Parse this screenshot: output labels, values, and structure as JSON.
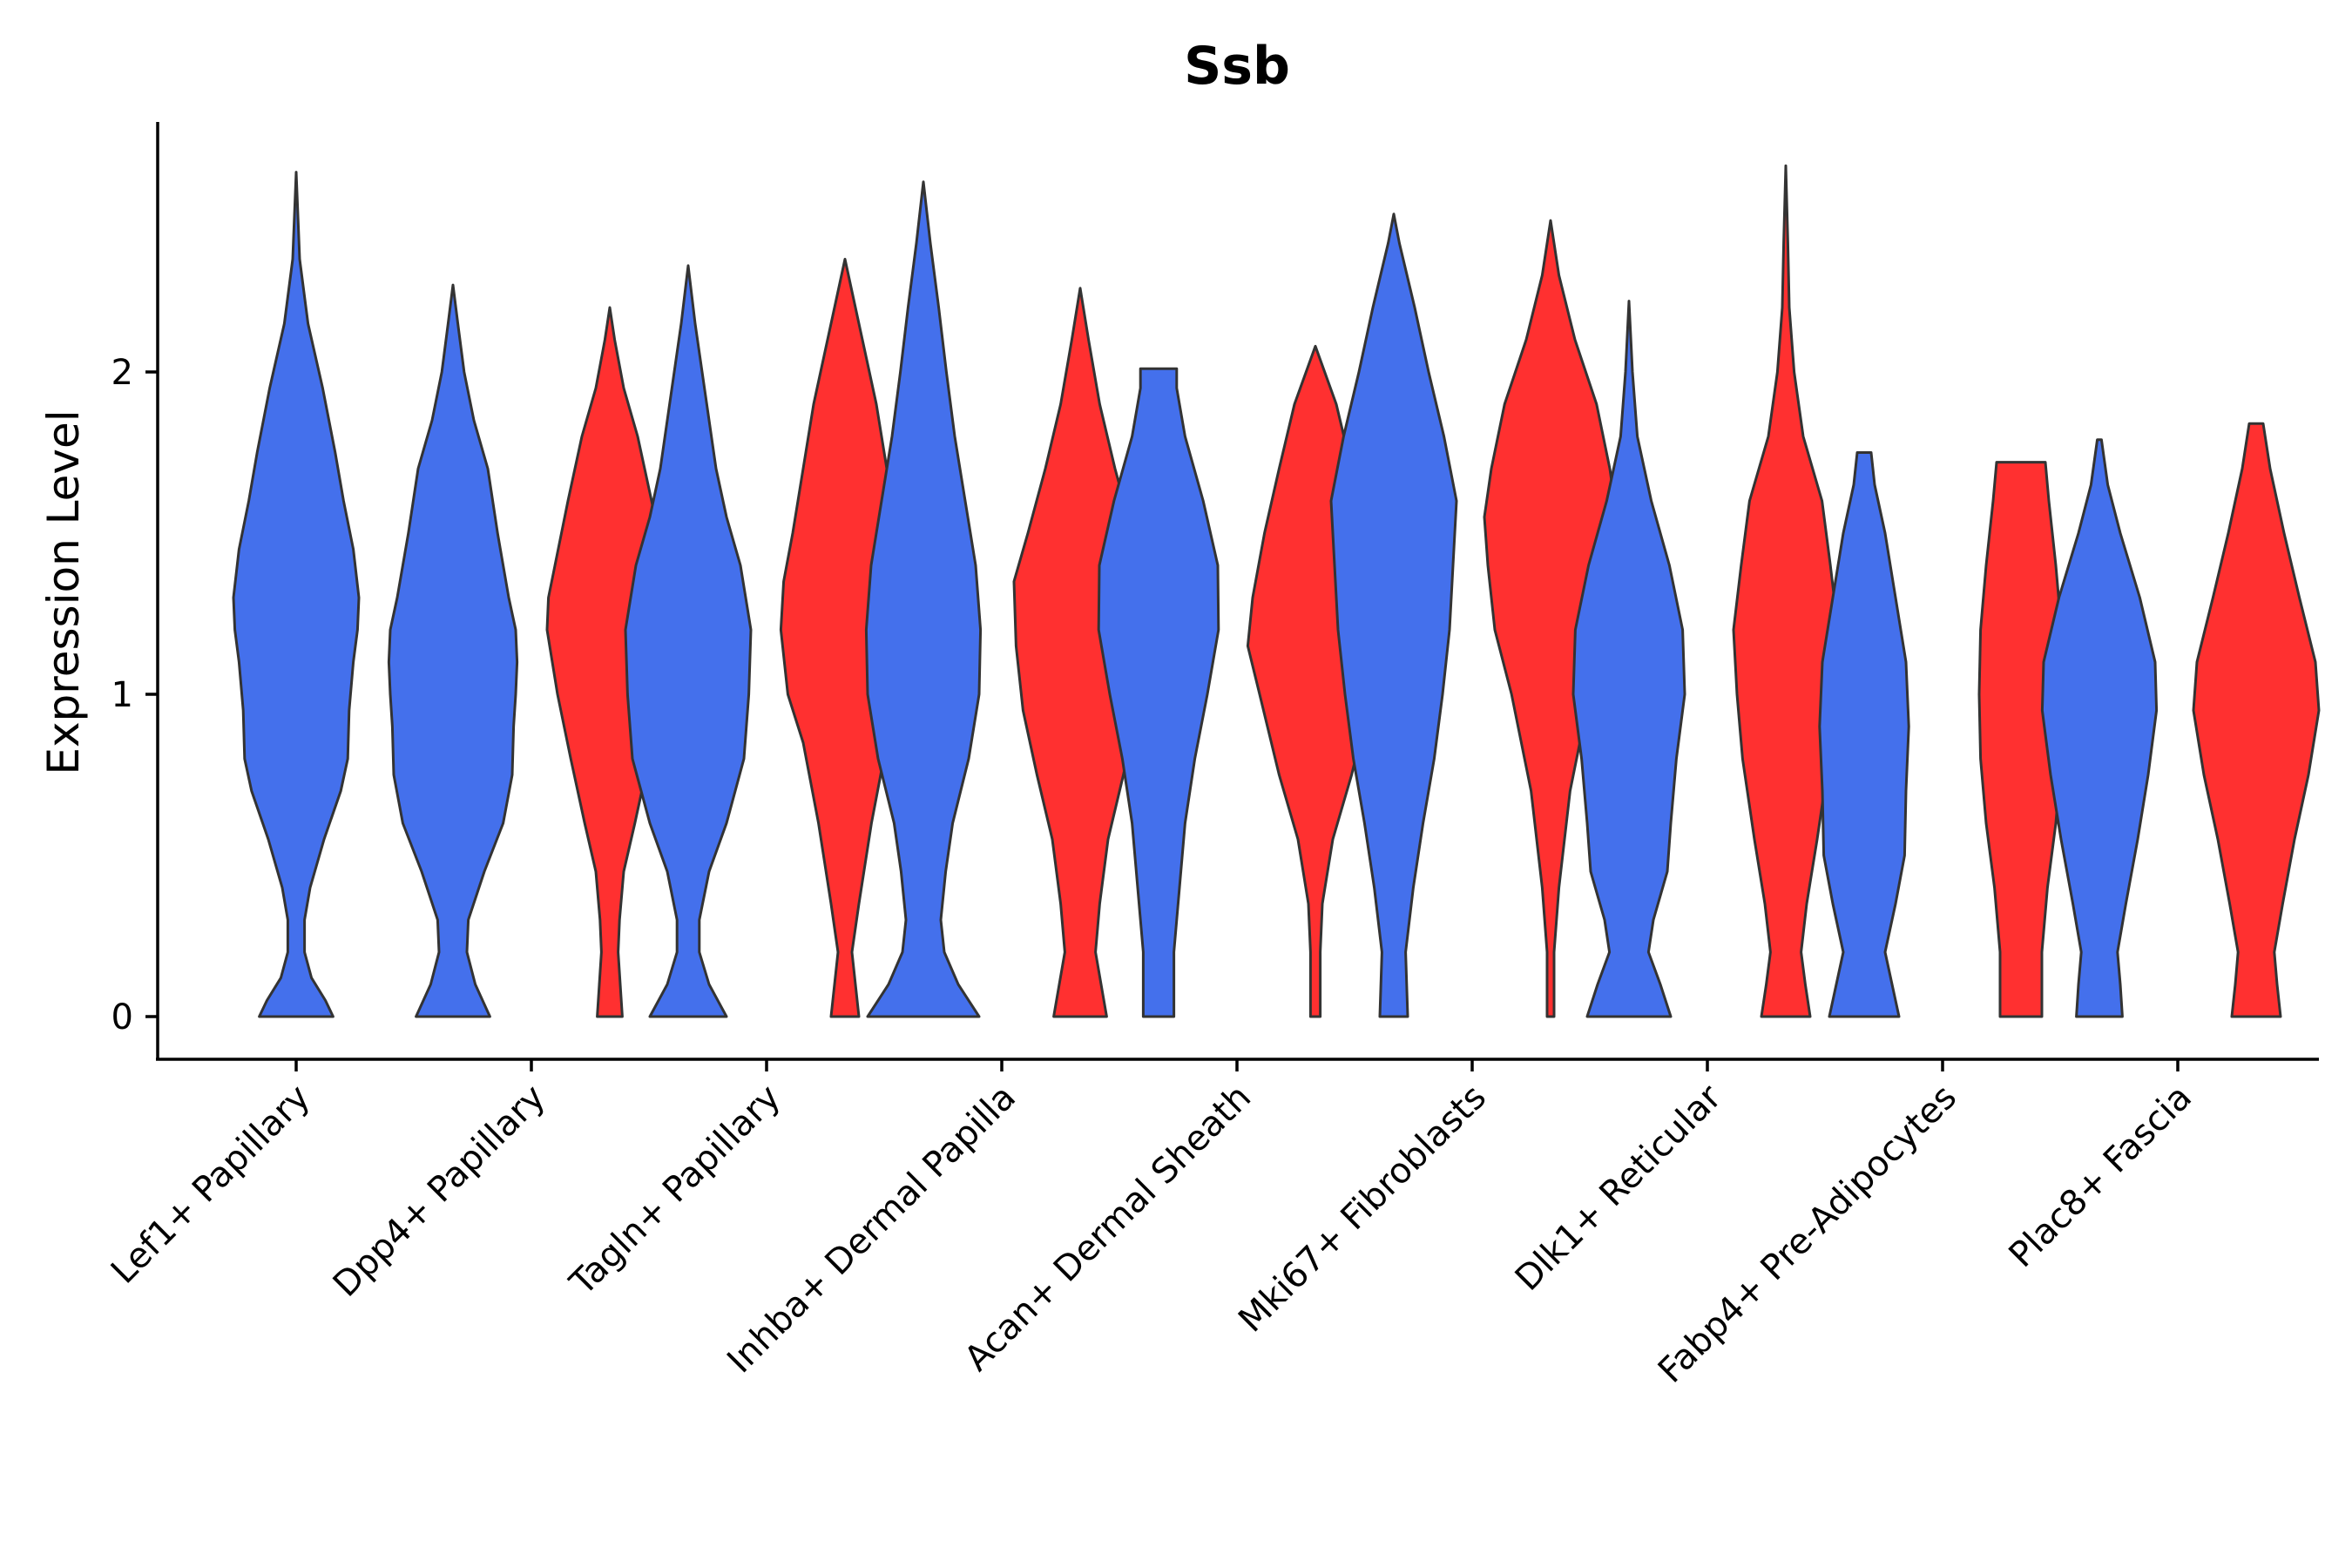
{
  "chart_data": {
    "type": "violin",
    "title": "Ssb",
    "xlabel": "",
    "ylabel": "Expression Level",
    "ylim": [
      -0.13,
      2.8
    ],
    "yticks": [
      0,
      1,
      2
    ],
    "categories": [
      "Lef1+ Papillary",
      "Dpp4+ Papillary",
      "Tagln+ Papillary",
      "Inhba+ Dermal Papilla",
      "Acan+ Dermal Sheath",
      "Mki67+ Fibroblasts",
      "Dlk1+ Reticular",
      "Fabp4+ Pre-Adipocytes",
      "Plac8+ Fascia"
    ],
    "groups": [
      {
        "name": "group-1",
        "color": "#4470EC"
      },
      {
        "name": "group-2",
        "color": "#FF3030"
      }
    ],
    "violins": [
      {
        "category": "Lef1+ Papillary",
        "group": "group-1",
        "max": 2.62,
        "profile": [
          [
            0,
            0.53
          ],
          [
            0.05,
            0.42
          ],
          [
            0.12,
            0.22
          ],
          [
            0.2,
            0.12
          ],
          [
            0.3,
            0.12
          ],
          [
            0.4,
            0.2
          ],
          [
            0.55,
            0.4
          ],
          [
            0.7,
            0.64
          ],
          [
            0.8,
            0.74
          ],
          [
            0.95,
            0.76
          ],
          [
            1.1,
            0.82
          ],
          [
            1.2,
            0.88
          ],
          [
            1.3,
            0.9
          ],
          [
            1.45,
            0.82
          ],
          [
            1.6,
            0.68
          ],
          [
            1.75,
            0.56
          ],
          [
            1.95,
            0.38
          ],
          [
            2.15,
            0.17
          ],
          [
            2.35,
            0.05
          ],
          [
            2.62,
            0
          ]
        ]
      },
      {
        "category": "Dpp4+ Papillary",
        "group": "group-1",
        "max": 2.27,
        "profile": [
          [
            0,
            0.53
          ],
          [
            0.1,
            0.32
          ],
          [
            0.2,
            0.2
          ],
          [
            0.3,
            0.22
          ],
          [
            0.45,
            0.45
          ],
          [
            0.6,
            0.72
          ],
          [
            0.75,
            0.85
          ],
          [
            0.9,
            0.87
          ],
          [
            1.0,
            0.9
          ],
          [
            1.1,
            0.92
          ],
          [
            1.2,
            0.9
          ],
          [
            1.3,
            0.8
          ],
          [
            1.5,
            0.64
          ],
          [
            1.7,
            0.5
          ],
          [
            1.85,
            0.3
          ],
          [
            2.0,
            0.16
          ],
          [
            2.15,
            0.07
          ],
          [
            2.27,
            0
          ]
        ]
      },
      {
        "category": "Dpp4+ Papillary",
        "group": "group-2",
        "max": 2.2,
        "profile": [
          [
            0,
            0.18
          ],
          [
            0.1,
            0.15
          ],
          [
            0.2,
            0.12
          ],
          [
            0.3,
            0.14
          ],
          [
            0.45,
            0.2
          ],
          [
            0.6,
            0.36
          ],
          [
            0.8,
            0.56
          ],
          [
            1.0,
            0.75
          ],
          [
            1.2,
            0.9
          ],
          [
            1.3,
            0.88
          ],
          [
            1.45,
            0.74
          ],
          [
            1.6,
            0.6
          ],
          [
            1.8,
            0.4
          ],
          [
            1.95,
            0.2
          ],
          [
            2.1,
            0.07
          ],
          [
            2.2,
            0
          ]
        ]
      },
      {
        "category": "Tagln+ Papillary",
        "group": "group-1",
        "max": 2.33,
        "profile": [
          [
            0,
            0.55
          ],
          [
            0.1,
            0.3
          ],
          [
            0.2,
            0.16
          ],
          [
            0.3,
            0.16
          ],
          [
            0.45,
            0.3
          ],
          [
            0.6,
            0.55
          ],
          [
            0.8,
            0.8
          ],
          [
            1.0,
            0.87
          ],
          [
            1.2,
            0.9
          ],
          [
            1.4,
            0.75
          ],
          [
            1.55,
            0.55
          ],
          [
            1.7,
            0.4
          ],
          [
            1.85,
            0.3
          ],
          [
            2.0,
            0.2
          ],
          [
            2.15,
            0.1
          ],
          [
            2.33,
            0
          ]
        ]
      },
      {
        "category": "Tagln+ Papillary",
        "group": "group-2",
        "max": 2.35,
        "profile": [
          [
            0,
            0.2
          ],
          [
            0.1,
            0.15
          ],
          [
            0.2,
            0.1
          ],
          [
            0.35,
            0.2
          ],
          [
            0.6,
            0.38
          ],
          [
            0.85,
            0.6
          ],
          [
            1.0,
            0.82
          ],
          [
            1.2,
            0.92
          ],
          [
            1.35,
            0.88
          ],
          [
            1.5,
            0.75
          ],
          [
            1.7,
            0.6
          ],
          [
            1.9,
            0.45
          ],
          [
            2.05,
            0.3
          ],
          [
            2.2,
            0.15
          ],
          [
            2.35,
            0
          ]
        ]
      },
      {
        "category": "Inhba+ Dermal Papilla",
        "group": "group-1",
        "max": 2.59,
        "profile": [
          [
            0,
            0.8
          ],
          [
            0.1,
            0.5
          ],
          [
            0.2,
            0.3
          ],
          [
            0.3,
            0.25
          ],
          [
            0.45,
            0.32
          ],
          [
            0.6,
            0.42
          ],
          [
            0.8,
            0.65
          ],
          [
            1.0,
            0.8
          ],
          [
            1.2,
            0.82
          ],
          [
            1.4,
            0.75
          ],
          [
            1.6,
            0.6
          ],
          [
            1.8,
            0.45
          ],
          [
            2.0,
            0.33
          ],
          [
            2.2,
            0.22
          ],
          [
            2.4,
            0.1
          ],
          [
            2.59,
            0
          ]
        ]
      },
      {
        "category": "Inhba+ Dermal Papilla",
        "group": "group-2",
        "max": 2.26,
        "profile": [
          [
            0,
            0.38
          ],
          [
            0.1,
            0.3
          ],
          [
            0.2,
            0.22
          ],
          [
            0.35,
            0.28
          ],
          [
            0.55,
            0.4
          ],
          [
            0.75,
            0.62
          ],
          [
            0.95,
            0.82
          ],
          [
            1.15,
            0.92
          ],
          [
            1.35,
            0.95
          ],
          [
            1.5,
            0.75
          ],
          [
            1.7,
            0.5
          ],
          [
            1.9,
            0.28
          ],
          [
            2.1,
            0.12
          ],
          [
            2.26,
            0
          ]
        ]
      },
      {
        "category": "Acan+ Dermal Sheath",
        "group": "group-1",
        "max": 2.01,
        "profile": [
          [
            0,
            0.22
          ],
          [
            0.2,
            0.22
          ],
          [
            0.4,
            0.3
          ],
          [
            0.6,
            0.38
          ],
          [
            0.8,
            0.52
          ],
          [
            1.0,
            0.7
          ],
          [
            1.2,
            0.86
          ],
          [
            1.4,
            0.85
          ],
          [
            1.6,
            0.64
          ],
          [
            1.8,
            0.38
          ],
          [
            1.95,
            0.26
          ],
          [
            2.01,
            0.26
          ]
        ]
      },
      {
        "category": "Acan+ Dermal Sheath",
        "group": "group-2",
        "max": 2.08,
        "profile": [
          [
            0,
            0.07
          ],
          [
            0.2,
            0.07
          ],
          [
            0.35,
            0.1
          ],
          [
            0.55,
            0.25
          ],
          [
            0.75,
            0.52
          ],
          [
            1.0,
            0.8
          ],
          [
            1.15,
            0.97
          ],
          [
            1.3,
            0.9
          ],
          [
            1.5,
            0.73
          ],
          [
            1.7,
            0.52
          ],
          [
            1.9,
            0.3
          ],
          [
            2.08,
            0
          ]
        ]
      },
      {
        "category": "Mki67+ Fibroblasts",
        "group": "group-1",
        "max": 2.49,
        "profile": [
          [
            0,
            0.2
          ],
          [
            0.2,
            0.17
          ],
          [
            0.4,
            0.28
          ],
          [
            0.6,
            0.42
          ],
          [
            0.8,
            0.58
          ],
          [
            1.0,
            0.7
          ],
          [
            1.2,
            0.8
          ],
          [
            1.4,
            0.85
          ],
          [
            1.6,
            0.9
          ],
          [
            1.8,
            0.72
          ],
          [
            2.0,
            0.5
          ],
          [
            2.2,
            0.3
          ],
          [
            2.4,
            0.08
          ],
          [
            2.49,
            0
          ]
        ]
      },
      {
        "category": "Mki67+ Fibroblasts",
        "group": "group-2",
        "max": 2.47,
        "profile": [
          [
            0,
            0.05
          ],
          [
            0.2,
            0.05
          ],
          [
            0.4,
            0.12
          ],
          [
            0.7,
            0.28
          ],
          [
            1.0,
            0.56
          ],
          [
            1.2,
            0.8
          ],
          [
            1.4,
            0.9
          ],
          [
            1.55,
            0.95
          ],
          [
            1.7,
            0.85
          ],
          [
            1.9,
            0.66
          ],
          [
            2.1,
            0.35
          ],
          [
            2.3,
            0.12
          ],
          [
            2.47,
            0
          ]
        ]
      },
      {
        "category": "Dlk1+ Reticular",
        "group": "group-1",
        "max": 2.22,
        "profile": [
          [
            0,
            0.6
          ],
          [
            0.1,
            0.45
          ],
          [
            0.2,
            0.28
          ],
          [
            0.3,
            0.35
          ],
          [
            0.45,
            0.55
          ],
          [
            0.6,
            0.6
          ],
          [
            0.8,
            0.68
          ],
          [
            1.0,
            0.8
          ],
          [
            1.2,
            0.77
          ],
          [
            1.4,
            0.58
          ],
          [
            1.6,
            0.32
          ],
          [
            1.8,
            0.12
          ],
          [
            2.0,
            0.05
          ],
          [
            2.22,
            0
          ]
        ]
      },
      {
        "category": "Dlk1+ Reticular",
        "group": "group-2",
        "max": 2.64,
        "profile": [
          [
            0,
            0.35
          ],
          [
            0.1,
            0.28
          ],
          [
            0.2,
            0.22
          ],
          [
            0.35,
            0.3
          ],
          [
            0.55,
            0.45
          ],
          [
            0.8,
            0.62
          ],
          [
            1.0,
            0.7
          ],
          [
            1.2,
            0.75
          ],
          [
            1.4,
            0.64
          ],
          [
            1.6,
            0.52
          ],
          [
            1.8,
            0.25
          ],
          [
            2.0,
            0.12
          ],
          [
            2.2,
            0.05
          ],
          [
            2.4,
            0.03
          ],
          [
            2.64,
            0
          ]
        ]
      },
      {
        "category": "Fabp4+ Pre-Adipocytes",
        "group": "group-1",
        "max": 1.75,
        "profile": [
          [
            0,
            0.5
          ],
          [
            0.1,
            0.4
          ],
          [
            0.2,
            0.3
          ],
          [
            0.35,
            0.45
          ],
          [
            0.5,
            0.58
          ],
          [
            0.7,
            0.6
          ],
          [
            0.9,
            0.64
          ],
          [
            1.1,
            0.6
          ],
          [
            1.3,
            0.45
          ],
          [
            1.5,
            0.3
          ],
          [
            1.65,
            0.15
          ],
          [
            1.75,
            0.1
          ]
        ]
      },
      {
        "category": "Fabp4+ Pre-Adipocytes",
        "group": "group-2",
        "max": 1.72,
        "profile": [
          [
            0,
            0.3
          ],
          [
            0.2,
            0.3
          ],
          [
            0.4,
            0.38
          ],
          [
            0.6,
            0.5
          ],
          [
            0.8,
            0.58
          ],
          [
            1.0,
            0.6
          ],
          [
            1.2,
            0.58
          ],
          [
            1.4,
            0.5
          ],
          [
            1.6,
            0.4
          ],
          [
            1.72,
            0.35
          ]
        ]
      },
      {
        "category": "Plac8+ Fascia",
        "group": "group-1",
        "max": 1.79,
        "profile": [
          [
            0,
            0.33
          ],
          [
            0.1,
            0.3
          ],
          [
            0.2,
            0.26
          ],
          [
            0.35,
            0.38
          ],
          [
            0.55,
            0.55
          ],
          [
            0.75,
            0.7
          ],
          [
            0.95,
            0.82
          ],
          [
            1.1,
            0.8
          ],
          [
            1.3,
            0.58
          ],
          [
            1.5,
            0.3
          ],
          [
            1.65,
            0.12
          ],
          [
            1.79,
            0.03
          ]
        ]
      },
      {
        "category": "Plac8+ Fascia",
        "group": "group-2",
        "max": 1.84,
        "profile": [
          [
            0,
            0.35
          ],
          [
            0.1,
            0.3
          ],
          [
            0.2,
            0.26
          ],
          [
            0.35,
            0.38
          ],
          [
            0.55,
            0.55
          ],
          [
            0.75,
            0.75
          ],
          [
            0.95,
            0.9
          ],
          [
            1.1,
            0.85
          ],
          [
            1.3,
            0.62
          ],
          [
            1.5,
            0.4
          ],
          [
            1.7,
            0.2
          ],
          [
            1.84,
            0.1
          ]
        ]
      }
    ]
  }
}
